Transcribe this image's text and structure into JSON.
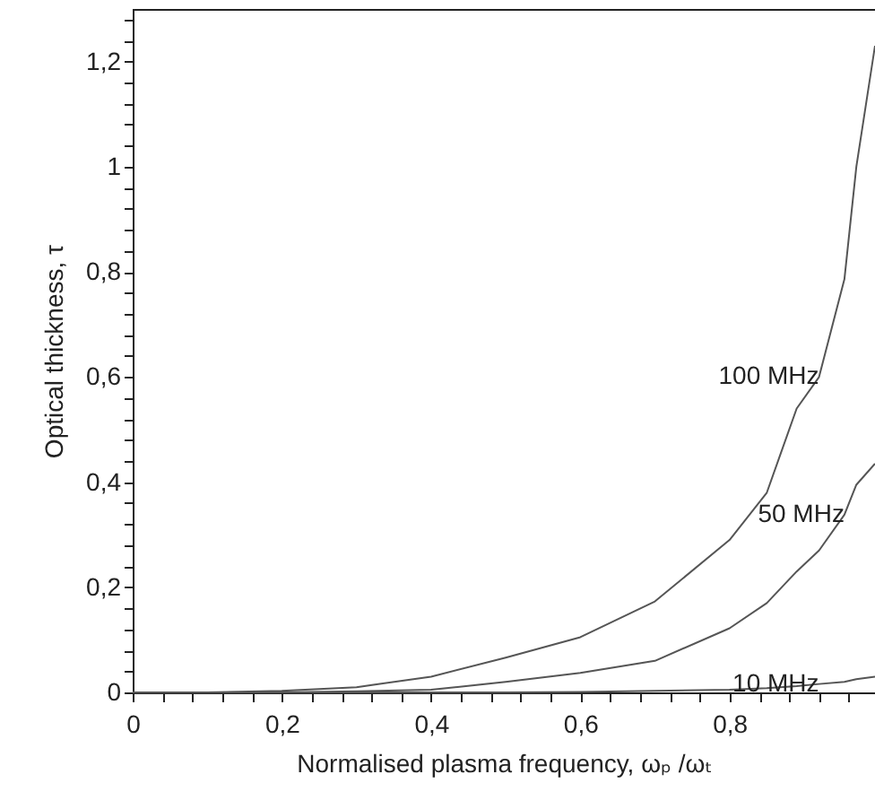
{
  "chart_data": {
    "type": "line",
    "xlabel": "Normalised plasma frequency,  ωₚ /ωₜ",
    "ylabel": "Optical thickness,  τ",
    "xlim": [
      0,
      0.995
    ],
    "ylim": [
      0,
      1.3
    ],
    "xticks": [
      {
        "value": 0,
        "label": "0"
      },
      {
        "value": 0.04,
        "label": null
      },
      {
        "value": 0.08,
        "label": null
      },
      {
        "value": 0.12,
        "label": null
      },
      {
        "value": 0.16,
        "label": null
      },
      {
        "value": 0.2,
        "label": "0,2"
      },
      {
        "value": 0.24,
        "label": null
      },
      {
        "value": 0.28,
        "label": null
      },
      {
        "value": 0.32,
        "label": null
      },
      {
        "value": 0.36,
        "label": null
      },
      {
        "value": 0.4,
        "label": "0,4"
      },
      {
        "value": 0.44,
        "label": null
      },
      {
        "value": 0.48,
        "label": null
      },
      {
        "value": 0.52,
        "label": null
      },
      {
        "value": 0.56,
        "label": null
      },
      {
        "value": 0.6,
        "label": "0,6"
      },
      {
        "value": 0.64,
        "label": null
      },
      {
        "value": 0.68,
        "label": null
      },
      {
        "value": 0.72,
        "label": null
      },
      {
        "value": 0.76,
        "label": null
      },
      {
        "value": 0.8,
        "label": "0,8"
      },
      {
        "value": 0.84,
        "label": null
      },
      {
        "value": 0.88,
        "label": null
      },
      {
        "value": 0.92,
        "label": null
      },
      {
        "value": 0.96,
        "label": null
      }
    ],
    "yticks": [
      {
        "value": 0,
        "label": "0"
      },
      {
        "value": 0.04,
        "label": null
      },
      {
        "value": 0.08,
        "label": null
      },
      {
        "value": 0.12,
        "label": null
      },
      {
        "value": 0.16,
        "label": null
      },
      {
        "value": 0.2,
        "label": "0,2"
      },
      {
        "value": 0.24,
        "label": null
      },
      {
        "value": 0.28,
        "label": null
      },
      {
        "value": 0.32,
        "label": null
      },
      {
        "value": 0.36,
        "label": null
      },
      {
        "value": 0.4,
        "label": "0,4"
      },
      {
        "value": 0.44,
        "label": null
      },
      {
        "value": 0.48,
        "label": null
      },
      {
        "value": 0.52,
        "label": null
      },
      {
        "value": 0.56,
        "label": null
      },
      {
        "value": 0.6,
        "label": "0,6"
      },
      {
        "value": 0.64,
        "label": null
      },
      {
        "value": 0.68,
        "label": null
      },
      {
        "value": 0.72,
        "label": null
      },
      {
        "value": 0.76,
        "label": null
      },
      {
        "value": 0.8,
        "label": "0,8"
      },
      {
        "value": 0.84,
        "label": null
      },
      {
        "value": 0.88,
        "label": null
      },
      {
        "value": 0.92,
        "label": null
      },
      {
        "value": 0.96,
        "label": null
      },
      {
        "value": 1,
        "label": "1"
      },
      {
        "value": 1.04,
        "label": null
      },
      {
        "value": 1.08,
        "label": null
      },
      {
        "value": 1.12,
        "label": null
      },
      {
        "value": 1.16,
        "label": null
      },
      {
        "value": 1.2,
        "label": "1,2"
      },
      {
        "value": 1.24,
        "label": null
      },
      {
        "value": 1.28,
        "label": null
      }
    ],
    "x": [
      0,
      0.1,
      0.2,
      0.3,
      0.4,
      0.5,
      0.6,
      0.7,
      0.8,
      0.85,
      0.89,
      0.92,
      0.954,
      0.97,
      0.995
    ],
    "series": [
      {
        "name": "100 MHz",
        "color": "#555555",
        "values": [
          0,
          0,
          0.003,
          0.01,
          0.03,
          0.066,
          0.105,
          0.173,
          0.29,
          0.38,
          0.54,
          0.6,
          0.786,
          1.0,
          1.23
        ]
      },
      {
        "name": "50 MHz",
        "color": "#555555",
        "values": [
          0,
          0,
          0,
          0.002,
          0.005,
          0.02,
          0.037,
          0.06,
          0.122,
          0.17,
          0.23,
          0.27,
          0.338,
          0.395,
          0.435
        ]
      },
      {
        "name": "10 MHz",
        "color": "#555555",
        "values": [
          0,
          0,
          0,
          0,
          0,
          0,
          0.001,
          0.003,
          0.005,
          0.008,
          0.012,
          0.016,
          0.02,
          0.025,
          0.03
        ]
      }
    ],
    "grid": false
  }
}
